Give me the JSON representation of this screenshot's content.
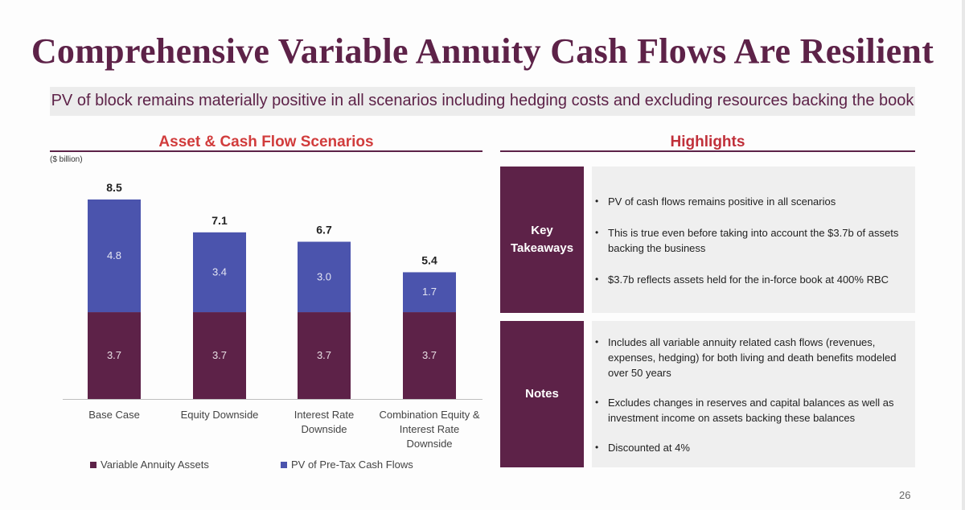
{
  "title": "Comprehensive Variable Annuity Cash Flows Are Resilient",
  "subtitle": "PV of block remains materially positive in all scenarios including hedging costs and excluding resources backing the book",
  "left_panel": {
    "title": "Asset & Cash Flow Scenarios",
    "unit_label": "($ billion)"
  },
  "right_panel": {
    "title": "Highlights",
    "key_takeaways": {
      "label_line1": "Key",
      "label_line2": "Takeaways",
      "bullets": [
        "PV of cash flows remains positive in all scenarios",
        "This is true even before taking into account the $3.7b of assets backing the business",
        "$3.7b reflects assets held for the in-force book at 400% RBC"
      ]
    },
    "notes": {
      "label": "Notes",
      "bullets": [
        "Includes all variable annuity related cash flows (revenues, expenses, hedging) for both living and death benefits modeled over 50 years",
        "Excludes changes in reserves and capital balances as well as investment income on assets backing these balances",
        "Discounted at 4%"
      ]
    }
  },
  "chart_data": {
    "type": "bar",
    "stacked": true,
    "categories": [
      [
        "Base Case"
      ],
      [
        "Equity Downside"
      ],
      [
        "Interest Rate",
        "Downside"
      ],
      [
        "Combination Equity &",
        "Interest Rate",
        "Downside"
      ]
    ],
    "series": [
      {
        "name": "Variable Annuity Assets",
        "values": [
          3.7,
          3.7,
          3.7,
          3.7
        ],
        "color": "#5d2248"
      },
      {
        "name": "PV of Pre-Tax Cash Flows",
        "values": [
          4.8,
          3.4,
          3.0,
          1.7
        ],
        "color": "#4b54ad"
      }
    ],
    "totals": [
      8.5,
      7.1,
      6.7,
      5.4
    ],
    "segment_labels": [
      [
        "3.7",
        "3.7",
        "3.7",
        "3.7"
      ],
      [
        "4.8",
        "3.4",
        "3.0",
        "1.7"
      ]
    ],
    "total_labels": [
      "8.5",
      "7.1",
      "6.7",
      "5.4"
    ],
    "ylabel": "($ billion)",
    "ylim": [
      0,
      8.5
    ],
    "grid": false,
    "legend_position": "bottom"
  },
  "page_number": "26"
}
